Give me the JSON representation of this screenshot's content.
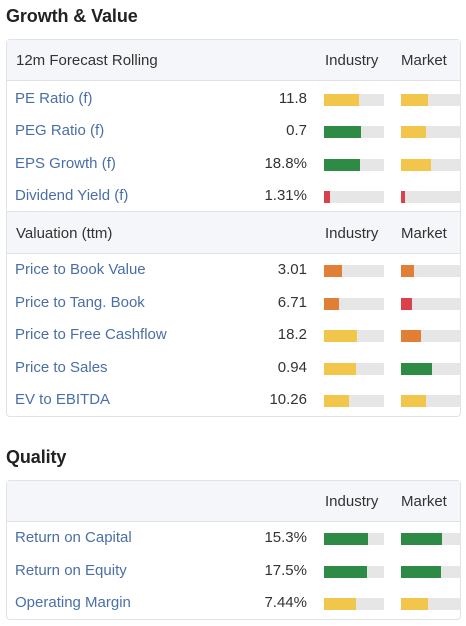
{
  "colors": {
    "yellow": "#f2c54b",
    "green": "#2e8b46",
    "orange": "#e07f35",
    "red": "#d9424b"
  },
  "growth_value": {
    "title": "Growth & Value",
    "forecast_header": {
      "label": "12m Forecast Rolling",
      "industry": "Industry",
      "market": "Market"
    },
    "forecast_rows": [
      {
        "name": "PE Ratio (f)",
        "value": "11.8",
        "industry_level": 0.58,
        "industry_color": "yellow",
        "market_level": 0.45,
        "market_color": "yellow"
      },
      {
        "name": "PEG Ratio (f)",
        "value": "0.7",
        "industry_level": 0.62,
        "industry_color": "green",
        "market_level": 0.42,
        "market_color": "yellow"
      },
      {
        "name": "EPS Growth (f)",
        "value": "18.8%",
        "industry_level": 0.6,
        "industry_color": "green",
        "market_level": 0.5,
        "market_color": "yellow"
      },
      {
        "name": "Dividend Yield (f)",
        "value": "1.31%",
        "industry_level": 0.1,
        "industry_color": "red",
        "market_level": 0.07,
        "market_color": "red"
      }
    ],
    "valuation_header": {
      "label": "Valuation (ttm)",
      "industry": "Industry",
      "market": "Market"
    },
    "valuation_rows": [
      {
        "name": "Price to Book Value",
        "value": "3.01",
        "industry_level": 0.3,
        "industry_color": "orange",
        "market_level": 0.22,
        "market_color": "orange"
      },
      {
        "name": "Price to Tang. Book",
        "value": "6.71",
        "industry_level": 0.25,
        "industry_color": "orange",
        "market_level": 0.18,
        "market_color": "red"
      },
      {
        "name": "Price to Free Cashflow",
        "value": "18.2",
        "industry_level": 0.55,
        "industry_color": "yellow",
        "market_level": 0.33,
        "market_color": "orange"
      },
      {
        "name": "Price to Sales",
        "value": "0.94",
        "industry_level": 0.53,
        "industry_color": "yellow",
        "market_level": 0.52,
        "market_color": "green"
      },
      {
        "name": "EV to EBITDA",
        "value": "10.26",
        "industry_level": 0.42,
        "industry_color": "yellow",
        "market_level": 0.42,
        "market_color": "yellow"
      }
    ]
  },
  "quality": {
    "title": "Quality",
    "header": {
      "label": "",
      "industry": "Industry",
      "market": "Market"
    },
    "rows": [
      {
        "name": "Return on Capital",
        "value": "15.3%",
        "industry_level": 0.73,
        "industry_color": "green",
        "market_level": 0.68,
        "market_color": "green"
      },
      {
        "name": "Return on Equity",
        "value": "17.5%",
        "industry_level": 0.72,
        "industry_color": "green",
        "market_level": 0.67,
        "market_color": "green"
      },
      {
        "name": "Operating Margin",
        "value": "7.44%",
        "industry_level": 0.53,
        "industry_color": "yellow",
        "market_level": 0.45,
        "market_color": "yellow"
      }
    ]
  }
}
